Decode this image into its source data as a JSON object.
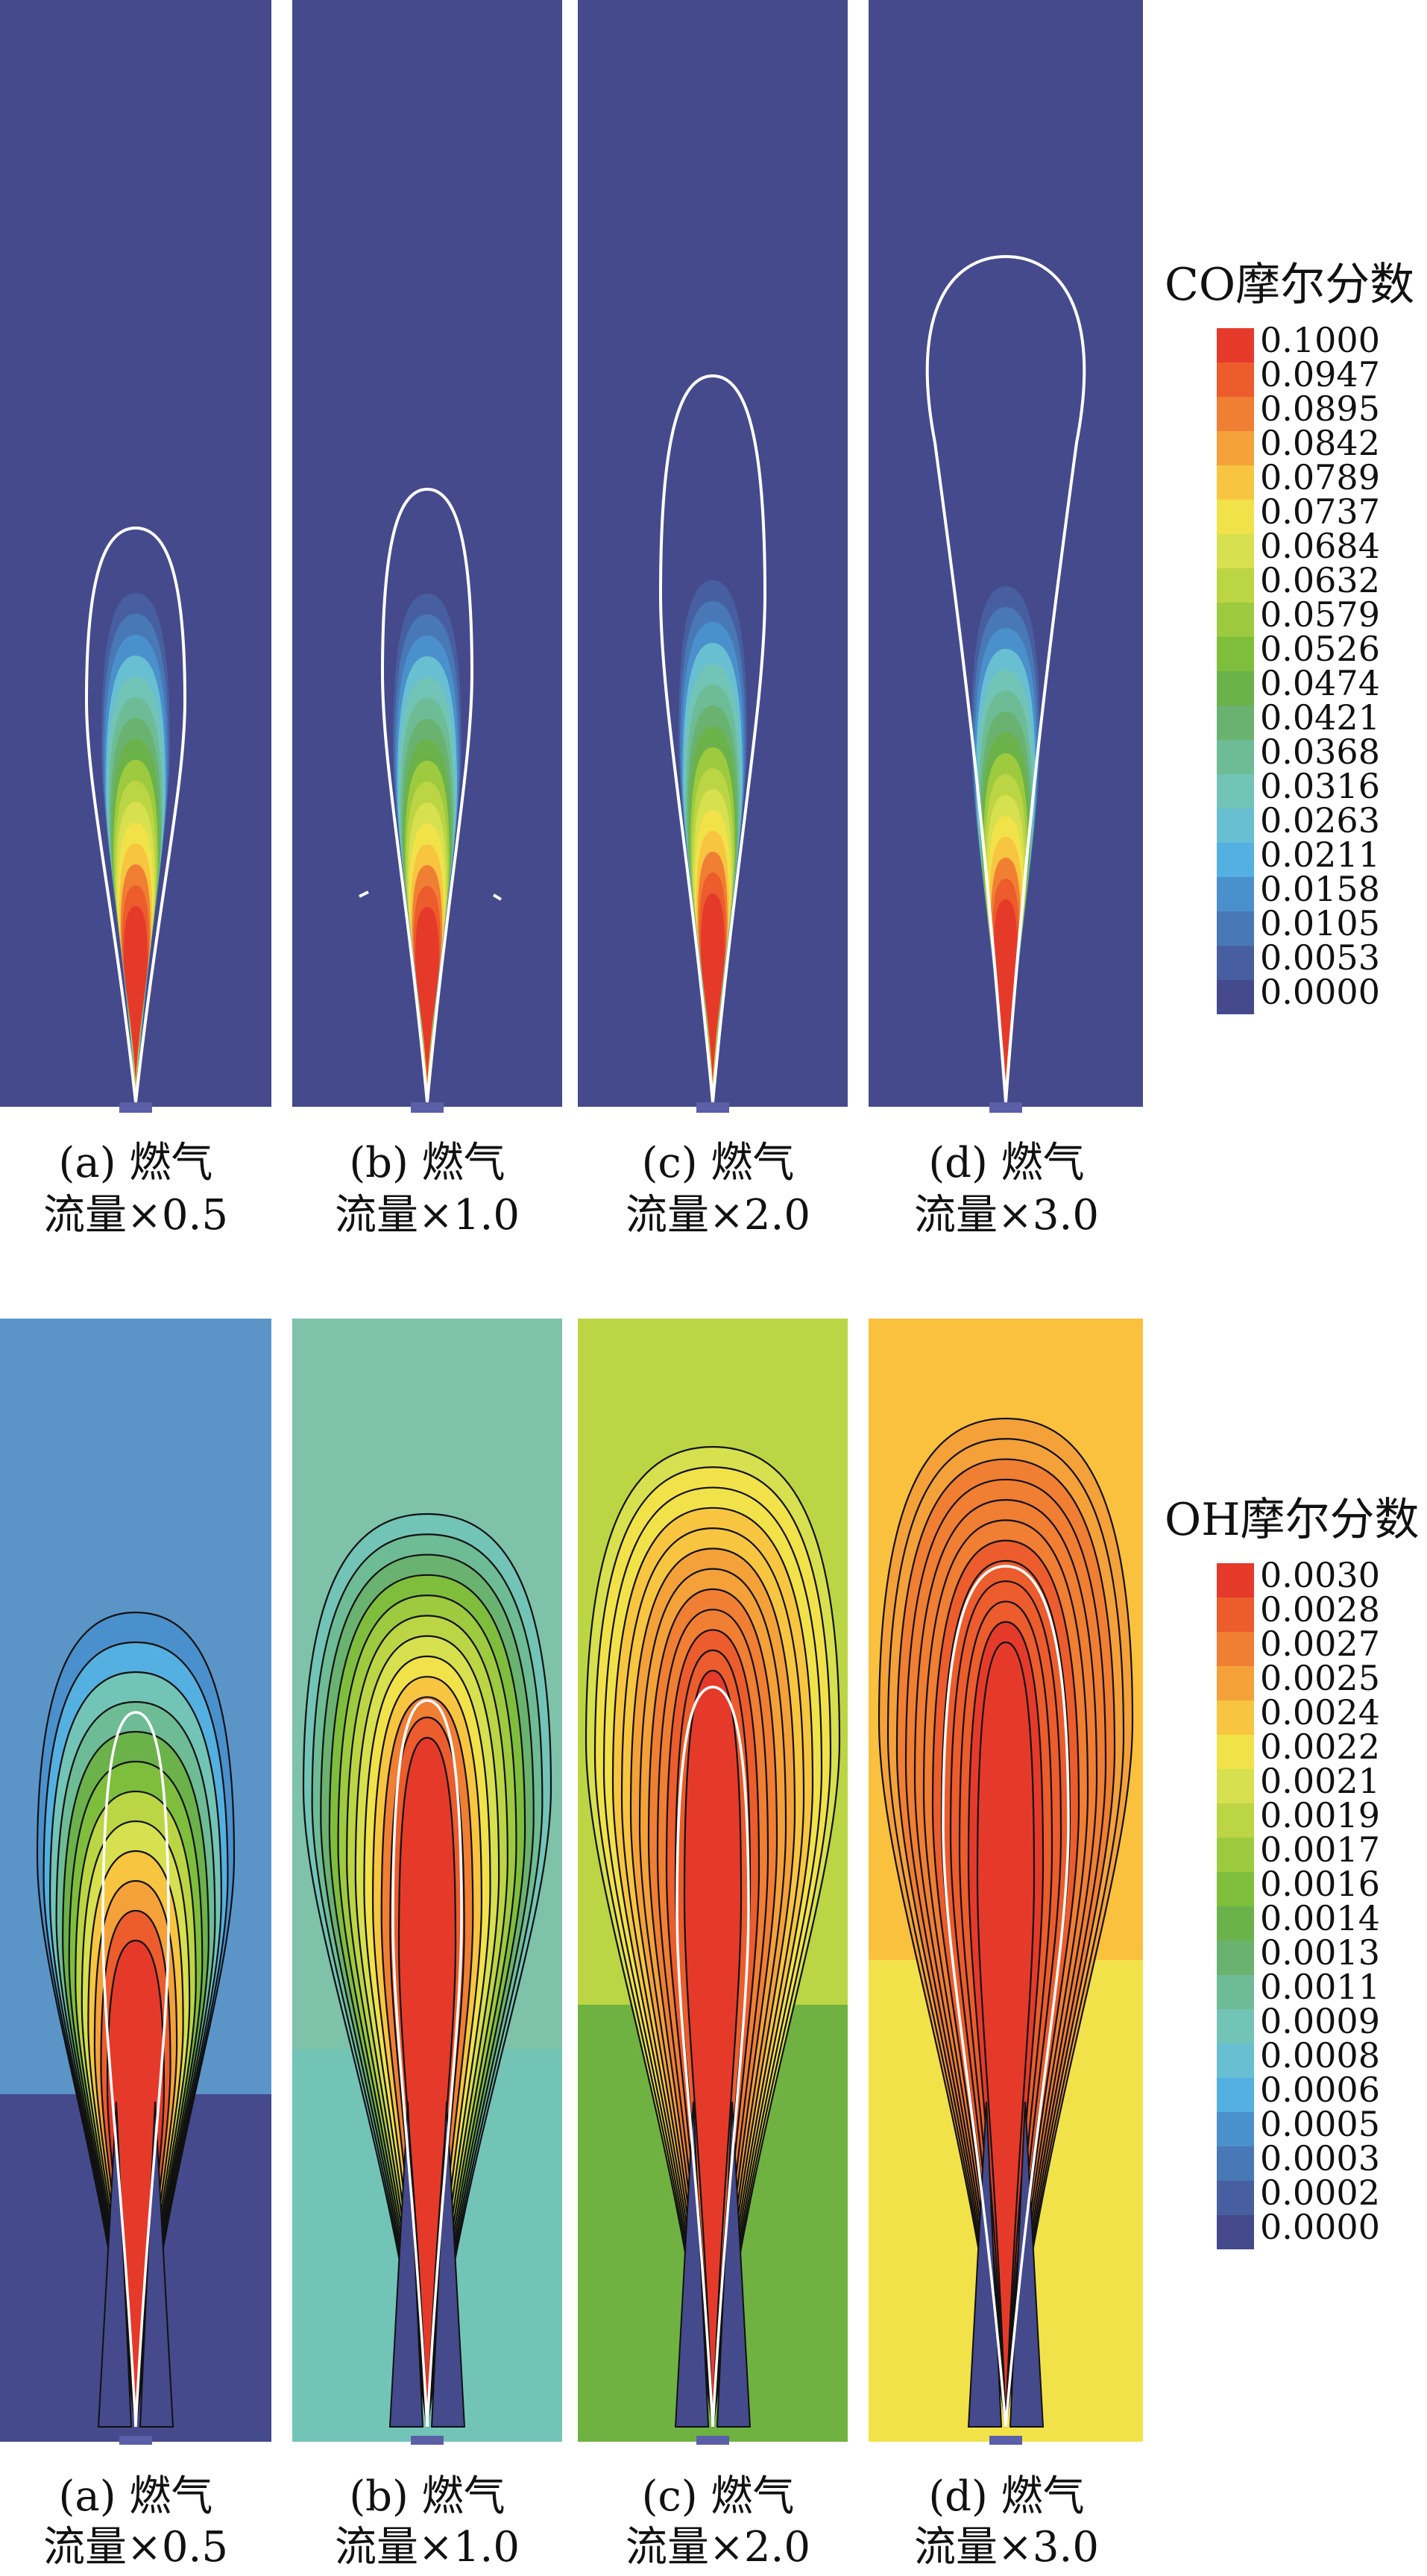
{
  "co_figure": {
    "colorbar": {
      "title": "CO摩尔分数",
      "ticks": [
        "0.1000",
        "0.0947",
        "0.0895",
        "0.0842",
        "0.0789",
        "0.0737",
        "0.0684",
        "0.0632",
        "0.0579",
        "0.0526",
        "0.0474",
        "0.0421",
        "0.0368",
        "0.0316",
        "0.0263",
        "0.0211",
        "0.0158",
        "0.0105",
        "0.0053",
        "0.0000"
      ]
    },
    "panels": [
      {
        "line1": "(a) 燃气",
        "line2": "流量×0.5",
        "flow_multiplier": 0.5
      },
      {
        "line1": "(b) 燃气",
        "line2": "流量×1.0",
        "flow_multiplier": 1.0
      },
      {
        "line1": "(c) 燃气",
        "line2": "流量×2.0",
        "flow_multiplier": 2.0
      },
      {
        "line1": "(d) 燃气",
        "line2": "流量×3.0",
        "flow_multiplier": 3.0
      }
    ]
  },
  "oh_figure": {
    "colorbar": {
      "title": "OH摩尔分数",
      "ticks": [
        "0.0030",
        "0.0028",
        "0.0027",
        "0.0025",
        "0.0024",
        "0.0022",
        "0.0021",
        "0.0019",
        "0.0017",
        "0.0016",
        "0.0014",
        "0.0013",
        "0.0011",
        "0.0009",
        "0.0008",
        "0.0006",
        "0.0005",
        "0.0003",
        "0.0002",
        "0.0000"
      ]
    },
    "panels": [
      {
        "line1": "(a) 燃气",
        "line2": "流量×0.5",
        "flow_multiplier": 0.5
      },
      {
        "line1": "(b) 燃气",
        "line2": "流量×1.0",
        "flow_multiplier": 1.0
      },
      {
        "line1": "(c) 燃气",
        "line2": "流量×2.0",
        "flow_multiplier": 2.0
      },
      {
        "line1": "(d) 燃气",
        "line2": "流量×3.0",
        "flow_multiplier": 3.0
      }
    ]
  },
  "colormap": [
    "#e53a2a",
    "#ec5c2c",
    "#f07e33",
    "#f4a13a",
    "#f7c540",
    "#f2e24a",
    "#d7e04e",
    "#bcd544",
    "#9dca3f",
    "#7fbe3d",
    "#6bb24a",
    "#6ab26f",
    "#6dbc95",
    "#72c4b7",
    "#69bfd2",
    "#54b0e0",
    "#4a90cc",
    "#4878b5",
    "#475fa0",
    "#454a8c"
  ],
  "oh_background_colors": [
    "#5b95c8",
    "#7dc2a9",
    "#bcd544",
    "#f9c13e"
  ],
  "oh_outer_colors": [
    "#454a8c",
    "#72c4b7",
    "#6fb241",
    "#f2e24a"
  ]
}
